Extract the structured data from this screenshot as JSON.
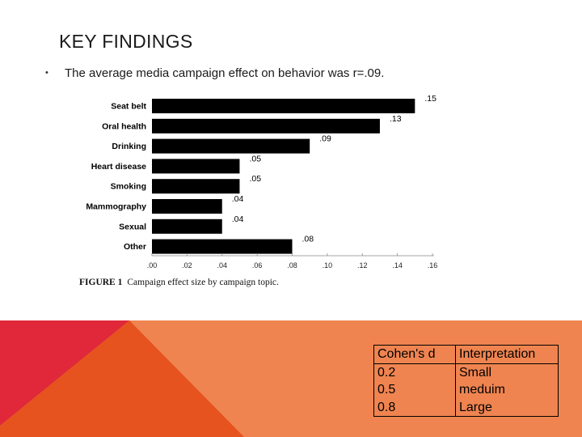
{
  "slide": {
    "title": "KEY FINDINGS",
    "bullet": "The  average media campaign effect on behavior was r=.09."
  },
  "figure": {
    "label": "FIGURE 1",
    "caption": "Campaign effect size by campaign topic."
  },
  "chart_data": {
    "type": "bar",
    "orientation": "horizontal",
    "categories": [
      "Seat belt",
      "Oral health",
      "Drinking",
      "Heart disease",
      "Smoking",
      "Mammography",
      "Sexual",
      "Other"
    ],
    "values": [
      0.15,
      0.13,
      0.09,
      0.05,
      0.05,
      0.04,
      0.04,
      0.08
    ],
    "value_labels": [
      ".15",
      ".13",
      ".09",
      ".05",
      ".05",
      ".04",
      ".04",
      ".08"
    ],
    "x_ticks": [
      ".00",
      ".02",
      ".04",
      ".06",
      ".08",
      ".10",
      ".12",
      ".14",
      ".16"
    ],
    "xlim": [
      0,
      0.16
    ],
    "bar_color": "#000000",
    "grid": false,
    "legend": "none"
  },
  "cohen_table": {
    "headers": [
      "Cohen's d",
      "Interpretation"
    ],
    "d_values": [
      "0.2",
      "0.5",
      "0.8"
    ],
    "interpretations": [
      "Small",
      "meduim",
      "Large"
    ]
  },
  "theme": {
    "red": "#e0283a",
    "dark_orange": "#e6531f",
    "orange": "#ef8450",
    "text": "#1a1a1a"
  }
}
